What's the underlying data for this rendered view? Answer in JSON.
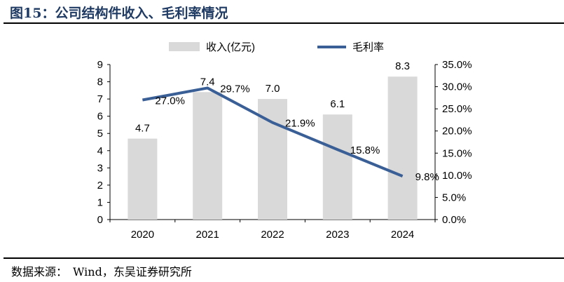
{
  "title": "图15：公司结构件收入、毛利率情况",
  "source": "数据来源：　Wind，东吴证券研究所",
  "chart_data": {
    "type": "bar+line",
    "categories": [
      "2020",
      "2021",
      "2022",
      "2023",
      "2024"
    ],
    "series": [
      {
        "name": "收入(亿元)",
        "type": "bar",
        "axis": "left",
        "values": [
          4.7,
          7.4,
          7.0,
          6.1,
          8.3
        ],
        "labels": [
          "4.7",
          "7.4",
          "7.0",
          "6.1",
          "8.3"
        ],
        "color": "#d9d9d9"
      },
      {
        "name": "毛利率",
        "type": "line",
        "axis": "right",
        "values": [
          27.0,
          29.7,
          21.9,
          15.8,
          9.8
        ],
        "labels": [
          "27.0%",
          "29.7%",
          "21.9%",
          "15.8%",
          "9.8%"
        ],
        "color": "#3a5f96"
      }
    ],
    "left_axis": {
      "range": [
        0,
        9
      ],
      "ticks": [
        "0",
        "1",
        "2",
        "3",
        "4",
        "5",
        "6",
        "7",
        "8",
        "9"
      ]
    },
    "right_axis": {
      "range": [
        0,
        35
      ],
      "ticks": [
        "0.0%",
        "5.0%",
        "10.0%",
        "15.0%",
        "20.0%",
        "25.0%",
        "30.0%",
        "35.0%"
      ]
    },
    "grid": false,
    "legend": "top"
  }
}
